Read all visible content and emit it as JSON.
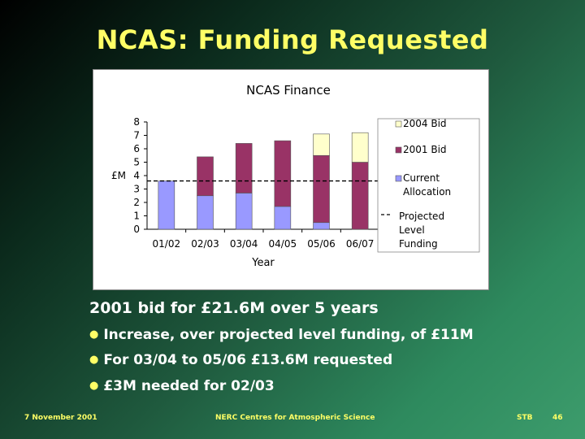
{
  "slide": {
    "title": "NCAS:  Funding Requested",
    "main_point": "2001 bid for £21.6M over 5 years",
    "bullets": [
      "Increase, over projected level funding, of £11M",
      "For 03/04 to 05/06 £13.6M requested",
      "£3M needed for 02/03"
    ],
    "footer": {
      "date": "7 November 2001",
      "center": "NERC Centres for Atmospheric Science",
      "author": "STB",
      "page": "46"
    },
    "bullet_color": "#ffff66"
  },
  "chart_data": {
    "type": "bar",
    "stacked": true,
    "title": "NCAS Finance",
    "xlabel": "Year",
    "ylabel": "£M",
    "ylim": [
      0,
      8
    ],
    "yticks": [
      "0",
      "1",
      "2",
      "3",
      "4",
      "5",
      "6",
      "7",
      "8"
    ],
    "categories": [
      "01/02",
      "02/03",
      "03/04",
      "04/05",
      "05/06",
      "06/07"
    ],
    "series": [
      {
        "name": "Current Allocation",
        "color": "#9999ff",
        "values": [
          3.6,
          2.5,
          2.7,
          1.7,
          0.5,
          0
        ]
      },
      {
        "name": "2001 Bid",
        "color": "#993366",
        "values": [
          0,
          2.9,
          3.7,
          4.9,
          5.0,
          5.0
        ]
      },
      {
        "name": "2004 Bid",
        "color": "#ffffcc",
        "values": [
          0,
          0,
          0,
          0,
          1.6,
          2.2
        ]
      }
    ],
    "reference_line": {
      "name": "Projected Level Funding",
      "value": 3.6,
      "style": "dashed"
    },
    "legend": {
      "placement": "right",
      "entries": [
        {
          "label": "2004 Bid",
          "color": "#ffffcc"
        },
        {
          "label": "2001 Bid",
          "color": "#993366"
        },
        {
          "label": "Current Allocation",
          "color": "#9999ff"
        },
        {
          "label": "Projected Level Funding",
          "marker": "dashed-line"
        }
      ]
    },
    "grid": false
  }
}
